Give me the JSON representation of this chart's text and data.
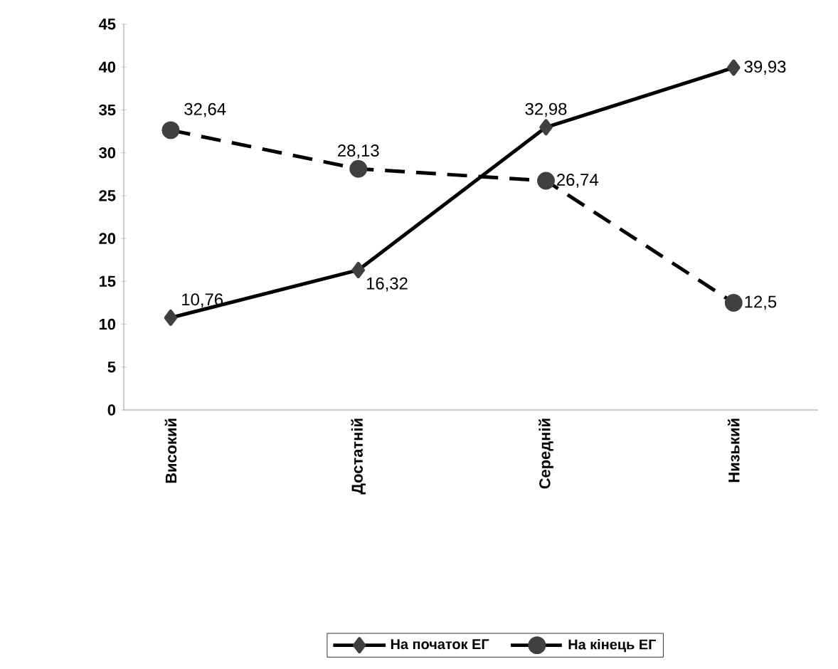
{
  "chart_data": {
    "type": "line",
    "categories": [
      "Високий",
      "Достатній",
      "Середній",
      "Низький"
    ],
    "series": [
      {
        "name": "На початок ЕГ",
        "color": "#000000",
        "values": [
          10.76,
          16.32,
          32.98,
          39.93
        ],
        "value_labels": [
          "10,76",
          "16,32",
          "32,98",
          "39,93"
        ],
        "marker": "diamond",
        "line_style": "solid"
      },
      {
        "name": "На кінець ЕГ",
        "color": "#000000",
        "values": [
          32.64,
          28.13,
          26.74,
          12.5
        ],
        "value_labels": [
          "32,64",
          "28,13",
          "26,74",
          "12,5"
        ],
        "marker": "circle",
        "line_style": "dashed"
      }
    ],
    "ylim": [
      0,
      45
    ],
    "yticks": [
      0,
      5,
      10,
      15,
      20,
      25,
      30,
      35,
      40,
      45
    ],
    "grid": false,
    "legend": "bottom"
  }
}
